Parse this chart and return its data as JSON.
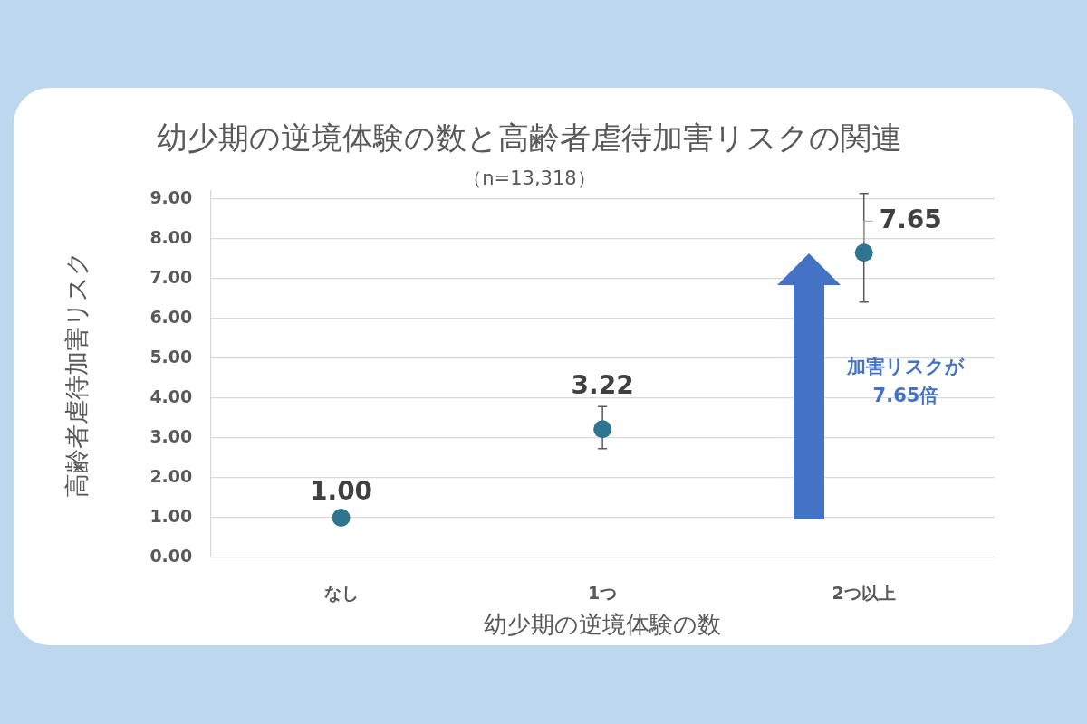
{
  "chart_data": {
    "type": "scatter",
    "title": "幼少期の逆境体験の数と高齢者虐待加害リスクの関連",
    "subtitle": "（n=13,318）",
    "xlabel": "幼少期の逆境体験の数",
    "ylabel": "高齢者虐待加害リスク",
    "categories": [
      "なし",
      "1つ",
      "2つ以上"
    ],
    "values": [
      1.0,
      3.22,
      7.65
    ],
    "color": "#2e7590",
    "errors": [
      null,
      [
        2.73,
        3.79
      ],
      [
        6.41,
        9.14
      ]
    ],
    "value_labels": [
      "1.00",
      "3.22",
      "7.65"
    ],
    "ylim": [
      0,
      9.2
    ],
    "yticks": [
      {
        "value": 0,
        "label": "0.00"
      },
      {
        "value": 1,
        "label": "1.00"
      },
      {
        "value": 2,
        "label": "2.00"
      },
      {
        "value": 3,
        "label": "3.00"
      },
      {
        "value": 4,
        "label": "4.00"
      },
      {
        "value": 5,
        "label": "5.00"
      },
      {
        "value": 6,
        "label": "6.00"
      },
      {
        "value": 7,
        "label": "7.00"
      },
      {
        "value": 8,
        "label": "8.00"
      },
      {
        "value": 9,
        "label": "9.00"
      }
    ],
    "grid": "y",
    "marker": "circle",
    "annotations": [
      "加害リスクが\n7.65倍"
    ]
  }
}
